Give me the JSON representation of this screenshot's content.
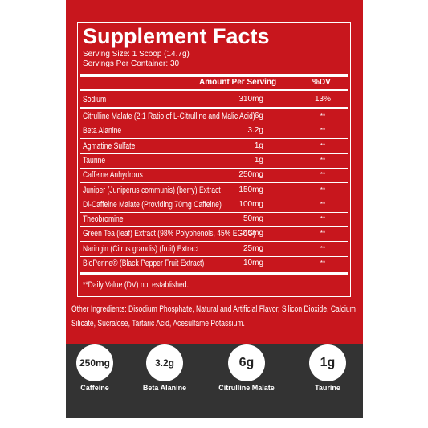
{
  "title": "Supplement Facts",
  "serving_size": "Serving Size: 1 Scoop (14.7g)",
  "servings": "Servings Per Container: 30",
  "header": {
    "amount": "Amount Per Serving",
    "dv": "%DV"
  },
  "rows": [
    [
      "Sodium",
      "310mg",
      "13%"
    ],
    [
      "Citrulline Malate (2:1 Ratio of L-Citrulline and Malic Acid)",
      "6g",
      "**"
    ],
    [
      "Beta Alanine",
      "3.2g",
      "**"
    ],
    [
      "Agmatine Sulfate",
      "1g",
      "**"
    ],
    [
      "Taurine",
      "1g",
      "**"
    ],
    [
      "Caffeine Anhydrous",
      "250mg",
      "**"
    ],
    [
      "Juniper (Juniperus communis) (berry) Extract",
      "150mg",
      "**"
    ],
    [
      "Di-Caffeine Malate (Providing 70mg Caffeine)",
      "100mg",
      "**"
    ],
    [
      "Theobromine",
      "50mg",
      "**"
    ],
    [
      "Green Tea (leaf) Extract (98% Polyphenols, 45% EGCG)",
      "45mg",
      "**"
    ],
    [
      "Naringin (Citrus grandis) (fruit) Extract",
      "25mg",
      "**"
    ],
    [
      "BioPerine® (Black Pepper Fruit Extract)",
      "10mg",
      "**"
    ]
  ],
  "footnote": "**Daily Value (DV) not established.",
  "other_ingredients": "Other Ingredients: Disodium Phosphate, Natural and Artificial Flavor, Silicon Dioxide, Calcium Silicate, Sucralose, Tartaric Acid, Acesulfame Potassium.",
  "highlights": [
    {
      "value": "250mg",
      "label": "Caffeine"
    },
    {
      "value": "3.2g",
      "label": "Beta Alanine"
    },
    {
      "value": "6g",
      "label": "Citrulline Malate"
    },
    {
      "value": "1g",
      "label": "Taurine"
    }
  ]
}
